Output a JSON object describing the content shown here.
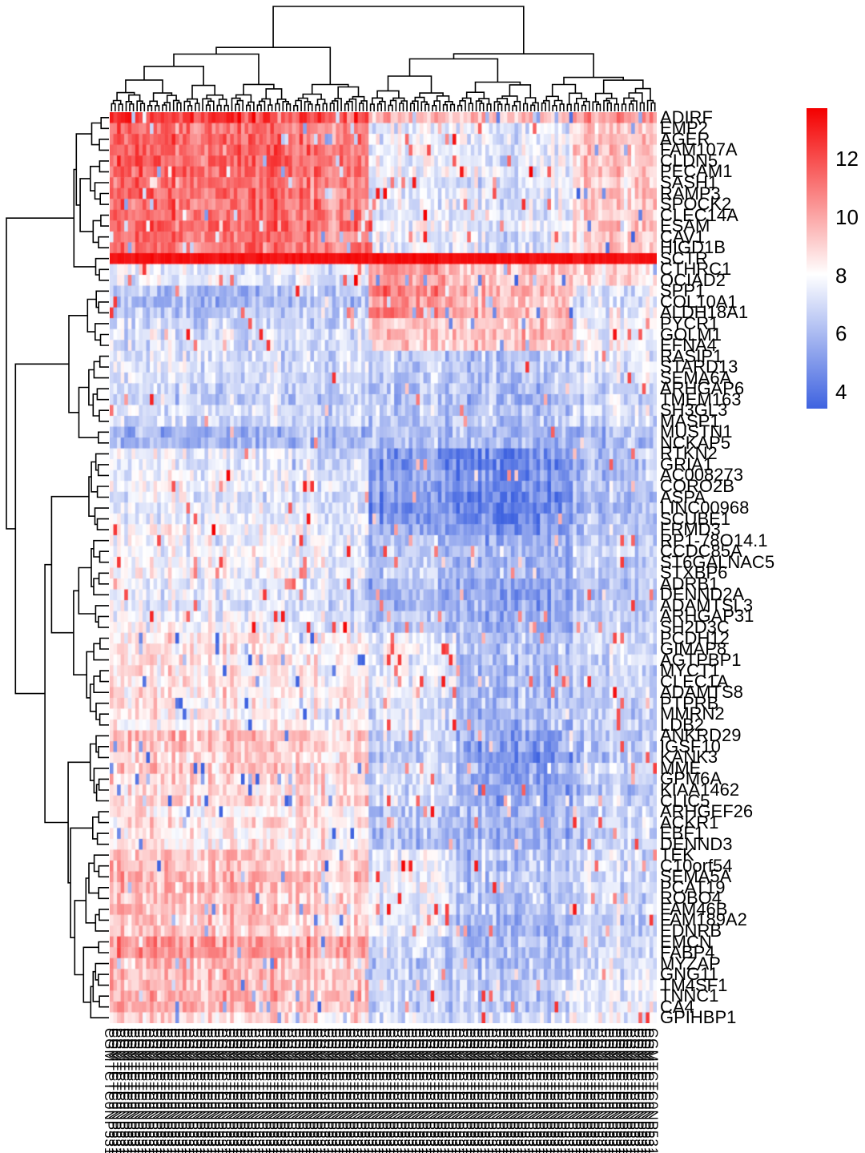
{
  "figure": {
    "background": "#ffffff",
    "description": "Hierarchically clustered gene expression heatmap with row and column dendrograms and a color key"
  },
  "chart_data": {
    "type": "heatmap",
    "rows": 84,
    "cols": 150,
    "seed": 42,
    "row_labels": [
      "ADIRF",
      "EMP2",
      "AGER",
      "FAM107A",
      "CLDN5",
      "PECAM1",
      "SASH1",
      "RAMP3",
      "SPOCK2",
      "CLEC14A",
      "ESAM",
      "CAV1",
      "HIGD1B",
      "SCTR",
      "CTHRC1",
      "OCIAD2",
      "SPP1",
      "COL10A1",
      "ALDH18A1",
      "PYCR1",
      "GOLM1",
      "EFNA4",
      "RASIP1",
      "STARD13",
      "SEMA6A",
      "ARHGAP6",
      "TMEM163",
      "SH3GL3",
      "MASP1",
      "MUSTN1",
      "NCKAP5",
      "RTKN2",
      "GRIA1",
      "AC008273",
      "CORO2B",
      "ASPA",
      "LINC00968",
      "SCUBE1",
      "FRMD3",
      "RP1-78O14.1",
      "CCDC85A",
      "ST6GALNAC5",
      "STXBP6",
      "ADRB1",
      "DENND2A",
      "ADAMTSL3",
      "ARHGAP31",
      "SH2D3C",
      "PCDH12",
      "GIMAP8",
      "AGTPBP1",
      "MYCT1",
      "CLEC1A",
      "ADAMTS8",
      "PTPRB",
      "MMRN2",
      "LDB2",
      "ANKRD29",
      "IGSF10",
      "KANK3",
      "MME",
      "GPM6A",
      "KIAA1462",
      "CLIC5",
      "ARHGEF26",
      "ACKR1",
      "EBF1",
      "DENND3",
      "TEK",
      "C10orf54",
      "SEMA5A",
      "PCAT19",
      "ROBO4",
      "FAM46B",
      "FAM189A2",
      "EDNRB",
      "EMCN",
      "FABP4",
      "MYZAP",
      "GNG11",
      "TM4SF1",
      "TNNC1",
      "CA4",
      "GPIHBP1"
    ],
    "col_labels_legible": false,
    "col_label_text": "CGMTCTC0NP531",
    "colorbar": {
      "ticks": [
        12,
        10,
        8,
        6,
        4
      ],
      "vmin": 3.4,
      "vmax": 13.7,
      "mid_value": 8,
      "color_low": "#3f63e0",
      "color_mid": "#ffffff",
      "color_high": "#f40000"
    },
    "col_group_bounds": [
      0,
      50,
      71,
      95,
      127,
      150
    ],
    "row_blocks": [
      {
        "rows": [
          0,
          1
        ],
        "means": [
          12.2,
          12.0,
          9.3,
          8.8,
          10.0
        ],
        "speckle": 0.09
      },
      {
        "rows": [
          1,
          13
        ],
        "means": [
          11.4,
          11.0,
          7.6,
          7.3,
          9.3
        ],
        "speckle": 0.05
      },
      {
        "rows": [
          13,
          14
        ],
        "means": [
          13.3,
          13.3,
          13.4,
          13.4,
          13.3
        ],
        "flat": true
      },
      {
        "rows": [
          14,
          16
        ],
        "means": [
          7.8,
          7.8,
          10.2,
          9.6,
          9.0
        ],
        "speckle": 0.05
      },
      {
        "rows": [
          16,
          19
        ],
        "means": [
          6.3,
          6.6,
          10.7,
          9.7,
          7.6
        ],
        "speckle": 0.04
      },
      {
        "rows": [
          19,
          22
        ],
        "means": [
          7.2,
          7.0,
          9.2,
          9.4,
          7.7
        ],
        "speckle": 0.04
      },
      {
        "rows": [
          22,
          29
        ],
        "means": [
          6.9,
          6.7,
          6.3,
          6.2,
          7.0
        ],
        "speckle": 0.03
      },
      {
        "rows": [
          29,
          31
        ],
        "means": [
          5.7,
          5.7,
          5.9,
          5.7,
          5.9
        ],
        "speckle": 0.02
      },
      {
        "rows": [
          31,
          39
        ],
        "means": [
          7.6,
          7.2,
          4.9,
          4.7,
          6.2
        ],
        "speckle": 0.03
      },
      {
        "rows": [
          39,
          48
        ],
        "means": [
          7.7,
          7.3,
          6.2,
          5.5,
          6.6
        ],
        "speckle": 0.04
      },
      {
        "rows": [
          48,
          57
        ],
        "means": [
          8.4,
          8.0,
          7.2,
          5.9,
          6.7
        ],
        "speckle": 0.04
      },
      {
        "rows": [
          57,
          60
        ],
        "means": [
          9.3,
          8.9,
          6.6,
          5.0,
          6.3
        ],
        "speckle": 0.04
      },
      {
        "rows": [
          60,
          64
        ],
        "means": [
          8.9,
          8.6,
          6.9,
          5.3,
          6.5
        ],
        "speckle": 0.04
      },
      {
        "rows": [
          64,
          68
        ],
        "means": [
          8.8,
          8.6,
          6.4,
          6.1,
          7.1
        ],
        "speckle": 0.04
      },
      {
        "rows": [
          68,
          76
        ],
        "means": [
          9.4,
          9.0,
          7.5,
          6.1,
          6.9
        ],
        "speckle": 0.04
      },
      {
        "rows": [
          76,
          78
        ],
        "means": [
          10.7,
          10.2,
          7.0,
          6.3,
          7.2
        ],
        "speckle": 0.03
      },
      {
        "rows": [
          78,
          83
        ],
        "means": [
          9.6,
          9.2,
          6.5,
          6.3,
          7.4
        ],
        "speckle": 0.04
      },
      {
        "rows": [
          83,
          84
        ],
        "means": [
          8.8,
          8.5,
          7.1,
          6.9,
          7.7
        ],
        "speckle": 0.04
      }
    ],
    "col_split_priority": [
      71,
      118,
      95,
      50,
      33,
      20,
      60,
      82,
      105,
      132,
      140,
      10,
      40
    ],
    "row_split_priority": [
      16,
      31,
      57,
      22,
      39,
      48,
      64,
      68,
      76,
      13,
      19,
      29,
      60,
      78,
      83
    ]
  }
}
